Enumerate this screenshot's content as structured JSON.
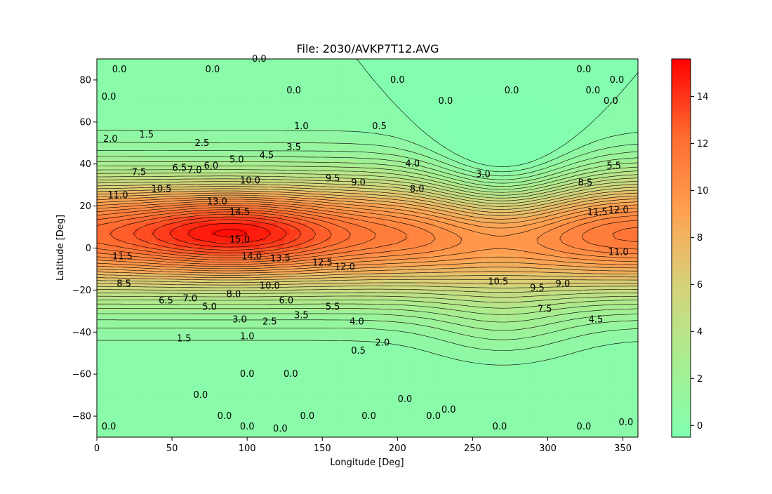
{
  "chart_data": {
    "type": "contour",
    "title": "File: 2030/AVKP7T12.AVG",
    "xlabel": "Longitude [Deg]",
    "ylabel": "Latitude [Deg]",
    "xlim": [
      0,
      360
    ],
    "ylim": [
      -90,
      90
    ],
    "xticks": [
      0,
      50,
      100,
      150,
      200,
      250,
      300,
      350
    ],
    "yticks": [
      -80,
      -60,
      -40,
      -20,
      0,
      20,
      40,
      60,
      80
    ],
    "colorbar": {
      "range": [
        -0.5,
        15.6
      ],
      "ticks": [
        0,
        2,
        4,
        6,
        8,
        10,
        12,
        14
      ],
      "colors": [
        "#80ffb0",
        "#a8ee90",
        "#d6d37a",
        "#ffa050",
        "#ff6a30",
        "#ff0000"
      ]
    },
    "contour_interval": 0.5,
    "field_features": {
      "maximum": {
        "lon": 90,
        "lat": 8,
        "value": 15.0
      },
      "secondary_maximum": {
        "lon": 360,
        "lat": 10,
        "value": 12.5
      },
      "minimum_trough_lon": 270,
      "background_value": 0.0
    },
    "contour_labels": [
      {
        "text": "0.0",
        "lon": 15,
        "lat": 85
      },
      {
        "text": "0.0",
        "lon": 77,
        "lat": 85
      },
      {
        "text": "0.0",
        "lon": 108,
        "lat": 90
      },
      {
        "text": "0.0",
        "lon": 8,
        "lat": 72
      },
      {
        "text": "0.0",
        "lon": 131,
        "lat": 75
      },
      {
        "text": "0.0",
        "lon": 200,
        "lat": 80
      },
      {
        "text": "0.0",
        "lon": 276,
        "lat": 75
      },
      {
        "text": "0.0",
        "lon": 324,
        "lat": 85
      },
      {
        "text": "0.0",
        "lon": 346,
        "lat": 80
      },
      {
        "text": "0.0",
        "lon": 232,
        "lat": 70
      },
      {
        "text": "0.0",
        "lon": 330,
        "lat": 75
      },
      {
        "text": "0.0",
        "lon": 342,
        "lat": 70
      },
      {
        "text": "1.0",
        "lon": 136,
        "lat": 58
      },
      {
        "text": "0.5",
        "lon": 188,
        "lat": 58
      },
      {
        "text": "2.0",
        "lon": 9,
        "lat": 52
      },
      {
        "text": "1.5",
        "lon": 33,
        "lat": 54
      },
      {
        "text": "2.5",
        "lon": 70,
        "lat": 50
      },
      {
        "text": "3.5",
        "lon": 131,
        "lat": 48
      },
      {
        "text": "4.5",
        "lon": 113,
        "lat": 44
      },
      {
        "text": "5.0",
        "lon": 93,
        "lat": 42
      },
      {
        "text": "6.0",
        "lon": 76,
        "lat": 39
      },
      {
        "text": "6.5",
        "lon": 55,
        "lat": 38
      },
      {
        "text": "7.0",
        "lon": 65,
        "lat": 37
      },
      {
        "text": "7.5",
        "lon": 28,
        "lat": 36
      },
      {
        "text": "4.0",
        "lon": 210,
        "lat": 40
      },
      {
        "text": "3.0",
        "lon": 257,
        "lat": 35
      },
      {
        "text": "5.5",
        "lon": 344,
        "lat": 39
      },
      {
        "text": "10.5",
        "lon": 43,
        "lat": 28
      },
      {
        "text": "10.0",
        "lon": 102,
        "lat": 32
      },
      {
        "text": "9.5",
        "lon": 157,
        "lat": 33
      },
      {
        "text": "9.0",
        "lon": 174,
        "lat": 31
      },
      {
        "text": "8.0",
        "lon": 213,
        "lat": 28
      },
      {
        "text": "8.5",
        "lon": 325,
        "lat": 31
      },
      {
        "text": "11.0",
        "lon": 14,
        "lat": 25
      },
      {
        "text": "13.0",
        "lon": 80,
        "lat": 22
      },
      {
        "text": "11.5",
        "lon": 333,
        "lat": 17
      },
      {
        "text": "12.0",
        "lon": 347,
        "lat": 18
      },
      {
        "text": "14.5",
        "lon": 95,
        "lat": 17
      },
      {
        "text": "15.0",
        "lon": 95,
        "lat": 4
      },
      {
        "text": "11.5",
        "lon": 17,
        "lat": -4
      },
      {
        "text": "14.0",
        "lon": 103,
        "lat": -4
      },
      {
        "text": "13.5",
        "lon": 122,
        "lat": -5
      },
      {
        "text": "12.5",
        "lon": 150,
        "lat": -7
      },
      {
        "text": "12.0",
        "lon": 165,
        "lat": -9
      },
      {
        "text": "11.0",
        "lon": 347,
        "lat": -2
      },
      {
        "text": "10.5",
        "lon": 267,
        "lat": -16
      },
      {
        "text": "9.5",
        "lon": 293,
        "lat": -19
      },
      {
        "text": "9.0",
        "lon": 310,
        "lat": -17
      },
      {
        "text": "8.5",
        "lon": 18,
        "lat": -17
      },
      {
        "text": "10.0",
        "lon": 115,
        "lat": -18
      },
      {
        "text": "8.0",
        "lon": 91,
        "lat": -22
      },
      {
        "text": "7.5",
        "lon": 298,
        "lat": -29
      },
      {
        "text": "6.5",
        "lon": 46,
        "lat": -25
      },
      {
        "text": "7.0",
        "lon": 62,
        "lat": -24
      },
      {
        "text": "6.0",
        "lon": 126,
        "lat": -25
      },
      {
        "text": "5.0",
        "lon": 75,
        "lat": -28
      },
      {
        "text": "5.5",
        "lon": 157,
        "lat": -28
      },
      {
        "text": "3.5",
        "lon": 136,
        "lat": -32
      },
      {
        "text": "3.0",
        "lon": 95,
        "lat": -34
      },
      {
        "text": "2.5",
        "lon": 115,
        "lat": -35
      },
      {
        "text": "4.0",
        "lon": 173,
        "lat": -35
      },
      {
        "text": "4.5",
        "lon": 332,
        "lat": -34
      },
      {
        "text": "1.5",
        "lon": 58,
        "lat": -43
      },
      {
        "text": "1.0",
        "lon": 100,
        "lat": -42
      },
      {
        "text": "2.0",
        "lon": 190,
        "lat": -45
      },
      {
        "text": "0.5",
        "lon": 174,
        "lat": -49
      },
      {
        "text": "0.0",
        "lon": 100,
        "lat": -60
      },
      {
        "text": "0.0",
        "lon": 129,
        "lat": -60
      },
      {
        "text": "0.0",
        "lon": 69,
        "lat": -70
      },
      {
        "text": "0.0",
        "lon": 205,
        "lat": -72
      },
      {
        "text": "0.0",
        "lon": 234,
        "lat": -77
      },
      {
        "text": "0.0",
        "lon": 140,
        "lat": -80
      },
      {
        "text": "0.0",
        "lon": 85,
        "lat": -80
      },
      {
        "text": "0.0",
        "lon": 181,
        "lat": -80
      },
      {
        "text": "0.0",
        "lon": 224,
        "lat": -80
      },
      {
        "text": "0.0",
        "lon": 8,
        "lat": -85
      },
      {
        "text": "0.0",
        "lon": 100,
        "lat": -85
      },
      {
        "text": "0.0",
        "lon": 122,
        "lat": -86
      },
      {
        "text": "0.0",
        "lon": 268,
        "lat": -85
      },
      {
        "text": "0.0",
        "lon": 324,
        "lat": -85
      },
      {
        "text": "0.0",
        "lon": 352,
        "lat": -83
      }
    ]
  }
}
